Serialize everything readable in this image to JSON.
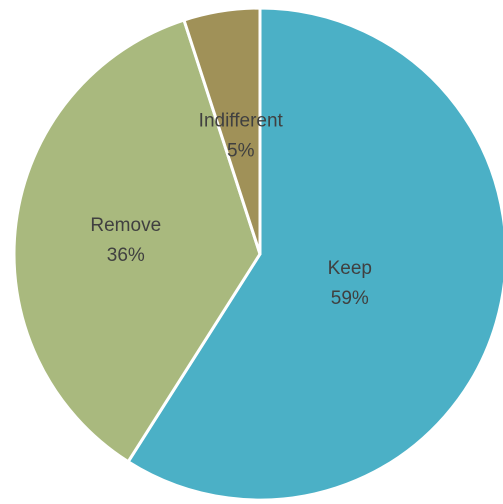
{
  "chart_data": {
    "type": "pie",
    "title": "",
    "slices": [
      {
        "label": "Keep",
        "value": 59,
        "value_label": "59%",
        "color": "#4bb0c6"
      },
      {
        "label": "Remove",
        "value": 36,
        "value_label": "36%",
        "color": "#a9b97e"
      },
      {
        "label": "Indifferent",
        "value": 5,
        "value_label": "5%",
        "color": "#a09158"
      }
    ],
    "start_angle_deg": 0,
    "direction": "clockwise",
    "separator_color": "#ffffff",
    "legend": "none"
  }
}
